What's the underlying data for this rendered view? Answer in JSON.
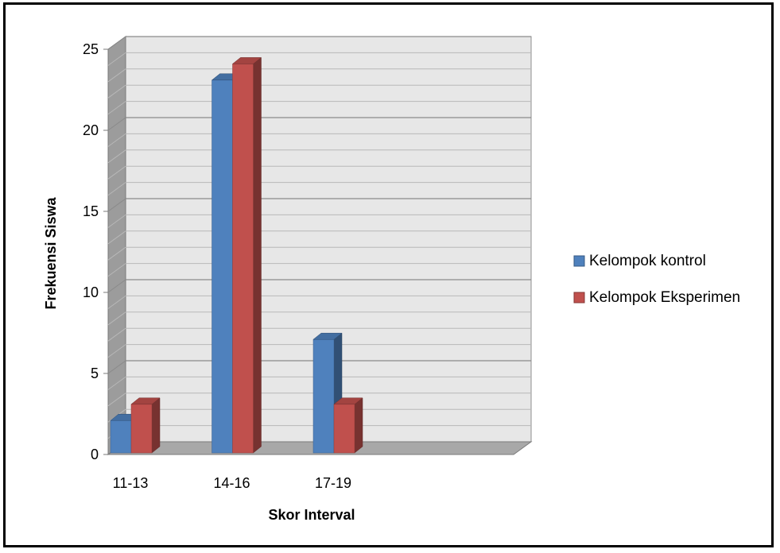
{
  "chart_data": {
    "type": "bar",
    "title": "",
    "xlabel": "Skor Interval",
    "ylabel": "Frekuensi Siswa",
    "categories": [
      "11-13",
      "14-16",
      "17-19",
      ""
    ],
    "series": [
      {
        "name": "Kelompok kontrol",
        "values": [
          2,
          23,
          7,
          0
        ],
        "color": "#4f81bd"
      },
      {
        "name": "Kelompok Eksperimen",
        "values": [
          3,
          24,
          3,
          0
        ],
        "color": "#c0504d"
      }
    ],
    "ylim": [
      0,
      25
    ],
    "yticks": [
      "0",
      "5",
      "10",
      "15",
      "20",
      "25"
    ],
    "grid": true,
    "legend_position": "right",
    "style": "3d"
  }
}
